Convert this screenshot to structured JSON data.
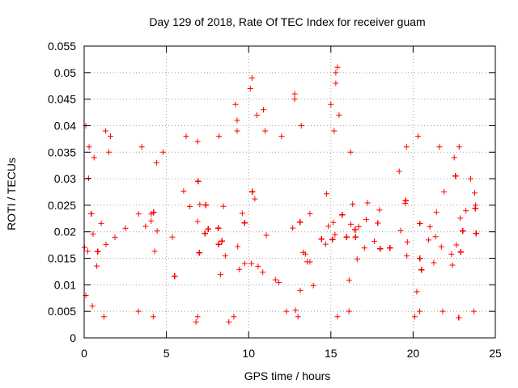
{
  "chart_data": {
    "type": "scatter",
    "title": "Day 129 of 2018, Rate Of TEC Index for receiver guam",
    "xlabel": "GPS time / hours",
    "ylabel": "ROTI / TECUs",
    "xlim": [
      0,
      25
    ],
    "ylim": [
      0,
      0.055
    ],
    "xticks": [
      "0",
      "5",
      "10",
      "15",
      "20",
      "25"
    ],
    "yticks": [
      "0",
      "0.005",
      "0.01",
      "0.015",
      "0.02",
      "0.025",
      "0.03",
      "0.035",
      "0.04",
      "0.045",
      "0.05",
      "0.055"
    ],
    "grid": true,
    "marker": "plus",
    "color": "#ff0000",
    "series": [
      {
        "name": "ROTI",
        "points": [
          [
            0.1,
            0.04
          ],
          [
            0.3,
            0.036
          ],
          [
            0.6,
            0.034
          ],
          [
            1.3,
            0.039
          ],
          [
            1.6,
            0.038
          ],
          [
            1.5,
            0.035
          ],
          [
            3.5,
            0.036
          ],
          [
            4.4,
            0.033
          ],
          [
            4.8,
            0.035
          ],
          [
            6.2,
            0.038
          ],
          [
            6.9,
            0.037
          ],
          [
            8.2,
            0.038
          ],
          [
            9.2,
            0.044
          ],
          [
            9.3,
            0.041
          ],
          [
            9.3,
            0.039
          ],
          [
            10.2,
            0.049
          ],
          [
            10.1,
            0.047
          ],
          [
            10.5,
            0.042
          ],
          [
            10.9,
            0.043
          ],
          [
            11.0,
            0.039
          ],
          [
            12.0,
            0.038
          ],
          [
            12.8,
            0.045
          ],
          [
            12.8,
            0.046
          ],
          [
            13.2,
            0.04
          ],
          [
            15.0,
            0.044
          ],
          [
            15.3,
            0.05
          ],
          [
            15.4,
            0.051
          ],
          [
            15.3,
            0.048
          ],
          [
            15.5,
            0.042
          ],
          [
            15.2,
            0.039
          ],
          [
            16.2,
            0.035
          ],
          [
            19.6,
            0.036
          ],
          [
            20.3,
            0.038
          ],
          [
            21.6,
            0.036
          ],
          [
            22.5,
            0.034
          ],
          [
            22.8,
            0.036
          ],
          [
            23.5,
            0.03
          ],
          [
            23.8,
            0.025
          ],
          [
            0.1,
            0.008
          ],
          [
            0.5,
            0.006
          ],
          [
            1.2,
            0.004
          ],
          [
            3.3,
            0.005
          ],
          [
            4.2,
            0.004
          ],
          [
            6.8,
            0.003
          ],
          [
            6.9,
            0.004
          ],
          [
            8.8,
            0.003
          ],
          [
            9.1,
            0.004
          ],
          [
            12.3,
            0.005
          ],
          [
            13.0,
            0.004
          ],
          [
            15.4,
            0.004
          ],
          [
            16.1,
            0.005
          ],
          [
            20.1,
            0.004
          ],
          [
            20.4,
            0.005
          ],
          [
            21.8,
            0.005
          ],
          [
            23.7,
            0.005
          ]
        ],
        "bulk": {
          "band_center": 0.018,
          "band_spread": 0.0045,
          "x_range": [
            0,
            23.9
          ],
          "gaps_hours": [
            [
              0.85,
              1.0
            ],
            [
              2.55,
              2.7
            ],
            [
              5.1,
              5.2
            ],
            [
              14.1,
              14.2
            ],
            [
              17.6,
              17.75
            ],
            [
              19.9,
              20.05
            ]
          ]
        }
      }
    ]
  }
}
